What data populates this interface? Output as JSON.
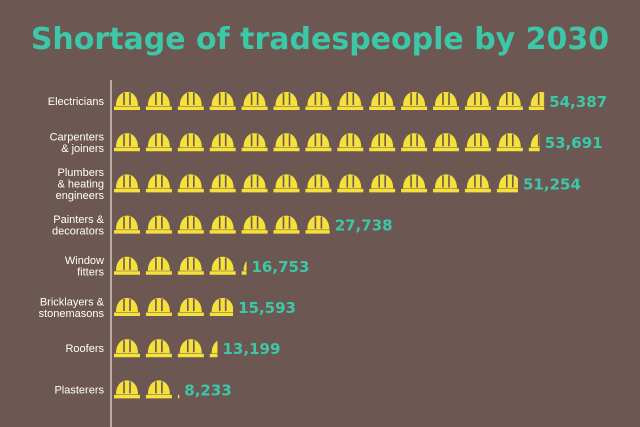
{
  "chart_data": {
    "type": "bar",
    "style": "pictogram",
    "icon": "hard-hat-icon",
    "title": "Shortage of tradespeople by 2030",
    "categories": [
      [
        "Electricians"
      ],
      [
        "Carpenters",
        "& joiners"
      ],
      [
        "Plumbers",
        "& heating",
        "engineers"
      ],
      [
        "Painters &",
        "decorators"
      ],
      [
        "Window",
        "fitters"
      ],
      [
        "Bricklayers &",
        "stonemasons"
      ],
      [
        "Roofers"
      ],
      [
        "Plasterers"
      ]
    ],
    "values": [
      54387,
      53691,
      51254,
      27738,
      16753,
      15593,
      13199,
      8233
    ],
    "value_labels": [
      "54,387",
      "53,691",
      "51,254",
      "27,738",
      "16,753",
      "15,593",
      "13,199",
      "8,233"
    ],
    "units_per_icon": 4000
  },
  "colors": {
    "background": "#6d5752",
    "title": "#3cc8a8",
    "icon": "#f5e13b",
    "axis": "#ffffff",
    "category_text": "#ffffff",
    "value_text": "#3cc8a8"
  }
}
